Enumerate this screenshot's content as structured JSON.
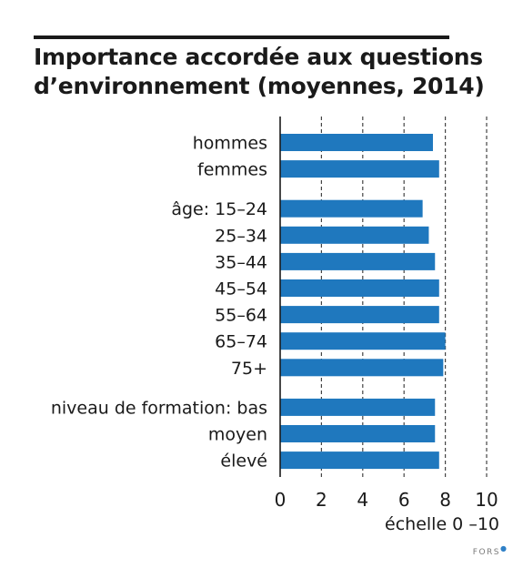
{
  "chart_data": {
    "type": "bar",
    "orientation": "horizontal",
    "title_lines": [
      "Importance accordée aux questions",
      "d’environnement (moyennes, 2014)"
    ],
    "categories": [
      "hommes",
      "femmes",
      "âge: 15–24",
      "25–34",
      "35–44",
      "45–54",
      "55–64",
      "65–74",
      "75+",
      "niveau de formation: bas",
      "moyen",
      "élevé"
    ],
    "groups": [
      [
        0,
        1
      ],
      [
        2,
        3,
        4,
        5,
        6,
        7,
        8
      ],
      [
        9,
        10,
        11
      ]
    ],
    "values": [
      7.4,
      7.7,
      6.9,
      7.2,
      7.5,
      7.7,
      7.7,
      8.0,
      7.9,
      7.5,
      7.5,
      7.7
    ],
    "xlim": [
      0,
      10
    ],
    "xticks": [
      "0",
      "2",
      "4",
      "6",
      "8",
      "10"
    ],
    "xtick_values": [
      0,
      2,
      4,
      6,
      8,
      10
    ],
    "xlabel": "échelle 0 –10",
    "grid": "dashed vertical",
    "bar_color": "#1f78be"
  },
  "source": {
    "label": "FORS"
  }
}
